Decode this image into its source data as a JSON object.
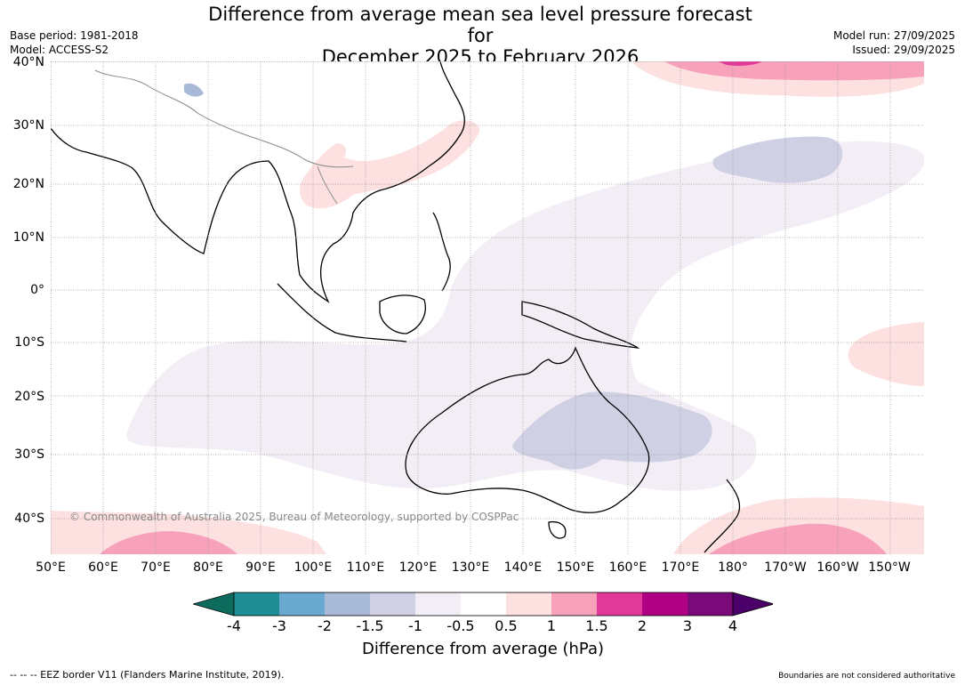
{
  "header": {
    "title_line1": "Difference from average mean sea level pressure forecast for",
    "title_line2": "December 2025 to February 2026",
    "base_period": "Base period: 1981-2018",
    "model": "Model: ACCESS-S2",
    "model_run": "Model run: 27/09/2025",
    "issued": "Issued: 29/09/2025"
  },
  "map": {
    "lat_labels": [
      "40°N",
      "30°N",
      "20°N",
      "10°N",
      "0°",
      "10°S",
      "20°S",
      "30°S",
      "40°S"
    ],
    "lon_labels": [
      "50°E",
      "60°E",
      "70°E",
      "80°E",
      "90°E",
      "100°E",
      "110°E",
      "120°E",
      "130°E",
      "140°E",
      "150°E",
      "160°E",
      "170°E",
      "180°",
      "170°W",
      "160°W",
      "150°W"
    ],
    "copyright": "© Commonwealth of Australia 2025, Bureau of Meteorology, supported by COSPPac"
  },
  "colorbar": {
    "label": "Difference from average (hPa)",
    "ticks": [
      "-4",
      "-3",
      "-2",
      "-1.5",
      "-1",
      "-0.5",
      "0.5",
      "1",
      "1.5",
      "2",
      "3",
      "4"
    ],
    "colors": {
      "below_min": "#0d6b5e",
      "bins": [
        "#1f8f95",
        "#6aa9d0",
        "#a9bad6",
        "#cfd0e4",
        "#f3eef5",
        "#ffffff",
        "#fde0e0",
        "#f7a1bb",
        "#e0399a",
        "#b00083",
        "#7a0a7a"
      ],
      "above_max": "#4a0068"
    }
  },
  "footer": {
    "eez_note": "--  --  -- EEZ border V11 (Flanders Marine Institute, 2019).",
    "disclaimer": "Boundaries are not considered authoritative"
  }
}
